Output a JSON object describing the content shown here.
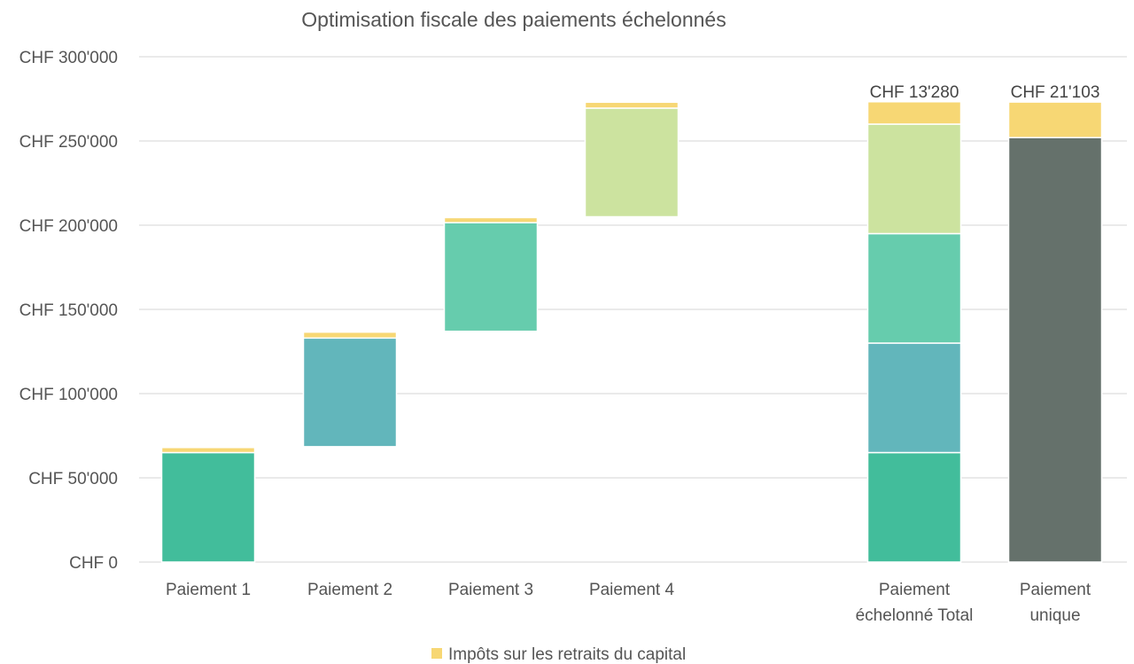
{
  "chart_data": {
    "type": "bar",
    "subtype": "waterfall-stacked",
    "title": "Optimisation fiscale des paiements échelonnés",
    "ylim": [
      0,
      300000
    ],
    "yticks": [
      {
        "value": 0,
        "label": "CHF 0"
      },
      {
        "value": 50000,
        "label": "CHF 50'000"
      },
      {
        "value": 100000,
        "label": "CHF 100'000"
      },
      {
        "value": 150000,
        "label": "CHF 150'000"
      },
      {
        "value": 200000,
        "label": "CHF 200'000"
      },
      {
        "value": 250000,
        "label": "CHF 250'000"
      },
      {
        "value": 300000,
        "label": "CHF 300'000"
      }
    ],
    "grid": true,
    "legend": {
      "position": "bottom",
      "entries": [
        {
          "label": "Impôts sur les retraits du capital",
          "color": "#f7d774"
        }
      ]
    },
    "tax_color": "#f7d774",
    "categories": [
      {
        "lines": [
          "Paiement 1"
        ],
        "segments": [
          {
            "from": 0,
            "to": 65000,
            "color": "#42bd9b",
            "kind": "payment"
          },
          {
            "from": 65000,
            "to": 68000,
            "color": "#f7d774",
            "kind": "tax"
          }
        ]
      },
      {
        "lines": [
          "Paiement 2"
        ],
        "segments": [
          {
            "from": 68500,
            "to": 133000,
            "color": "#62b6bb",
            "kind": "payment"
          },
          {
            "from": 133000,
            "to": 136500,
            "color": "#f7d774",
            "kind": "tax"
          }
        ]
      },
      {
        "lines": [
          "Paiement 3"
        ],
        "segments": [
          {
            "from": 137000,
            "to": 201500,
            "color": "#66ccad",
            "kind": "payment"
          },
          {
            "from": 201500,
            "to": 204500,
            "color": "#f7d774",
            "kind": "tax"
          }
        ]
      },
      {
        "lines": [
          "Paiement 4"
        ],
        "segments": [
          {
            "from": 205000,
            "to": 269500,
            "color": "#cce39f",
            "kind": "payment"
          },
          {
            "from": 269500,
            "to": 273000,
            "color": "#f7d774",
            "kind": "tax"
          }
        ]
      },
      {
        "lines": [
          "Paiement",
          "échelonné Total"
        ],
        "segments": [
          {
            "from": 0,
            "to": 65000,
            "color": "#42bd9b",
            "kind": "payment"
          },
          {
            "from": 65000,
            "to": 130000,
            "color": "#62b6bb",
            "kind": "payment"
          },
          {
            "from": 130000,
            "to": 195000,
            "color": "#66ccad",
            "kind": "payment"
          },
          {
            "from": 195000,
            "to": 260000,
            "color": "#cce39f",
            "kind": "payment"
          },
          {
            "from": 260000,
            "to": 273280,
            "color": "#f7d774",
            "kind": "tax"
          }
        ],
        "data_label": "CHF 13'280"
      },
      {
        "lines": [
          "Paiement",
          "unique"
        ],
        "segments": [
          {
            "from": 0,
            "to": 252000,
            "color": "#65716b",
            "kind": "payment"
          },
          {
            "from": 252000,
            "to": 273103,
            "color": "#f7d774",
            "kind": "tax"
          }
        ],
        "data_label": "CHF 21'103"
      }
    ]
  }
}
